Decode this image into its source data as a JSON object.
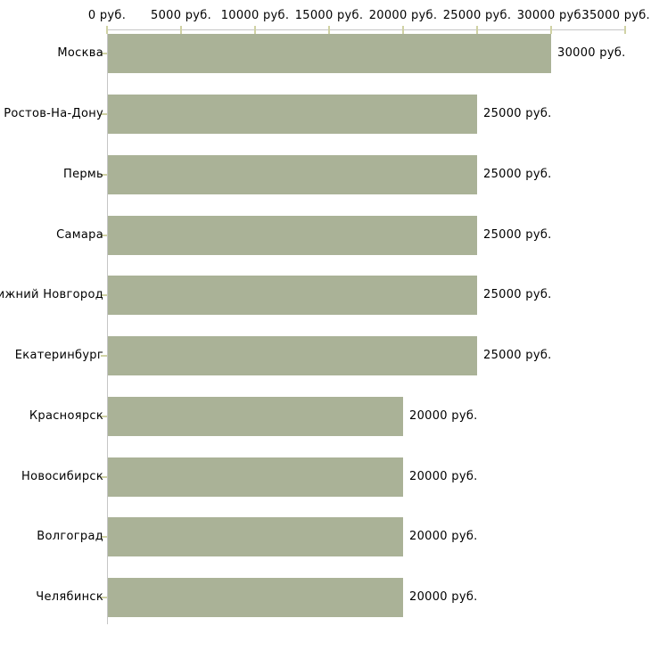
{
  "chart_data": {
    "type": "bar",
    "orientation": "horizontal",
    "categories": [
      "Москва",
      "Ростов-На-Дону",
      "Пермь",
      "Самара",
      "Нижний Новгород",
      "Екатеринбург",
      "Красноярск",
      "Новосибирск",
      "Волгоград",
      "Челябинск"
    ],
    "values": [
      30000,
      25000,
      25000,
      25000,
      25000,
      25000,
      20000,
      20000,
      20000,
      20000
    ],
    "value_labels": [
      "30000 руб.",
      "25000 руб.",
      "25000 руб.",
      "25000 руб.",
      "25000 руб.",
      "25000 руб.",
      "20000 руб.",
      "20000 руб.",
      "20000 руб.",
      "20000 руб."
    ],
    "x_ticks": [
      0,
      5000,
      10000,
      15000,
      20000,
      25000,
      30000,
      35000
    ],
    "x_tick_labels": [
      "0 руб.",
      "5000 руб.",
      "10000 руб.",
      "15000 руб.",
      "20000 руб.",
      "25000 руб.",
      "30000 руб.",
      "35000 руб."
    ],
    "xlim": [
      0,
      35000
    ],
    "unit": "руб.",
    "grid": false,
    "legend": false,
    "colors": {
      "bar": "#aab297",
      "axis": "#c6c6c6",
      "tick": "#d0d2a4",
      "text": "#000000",
      "background": "#ffffff"
    }
  }
}
